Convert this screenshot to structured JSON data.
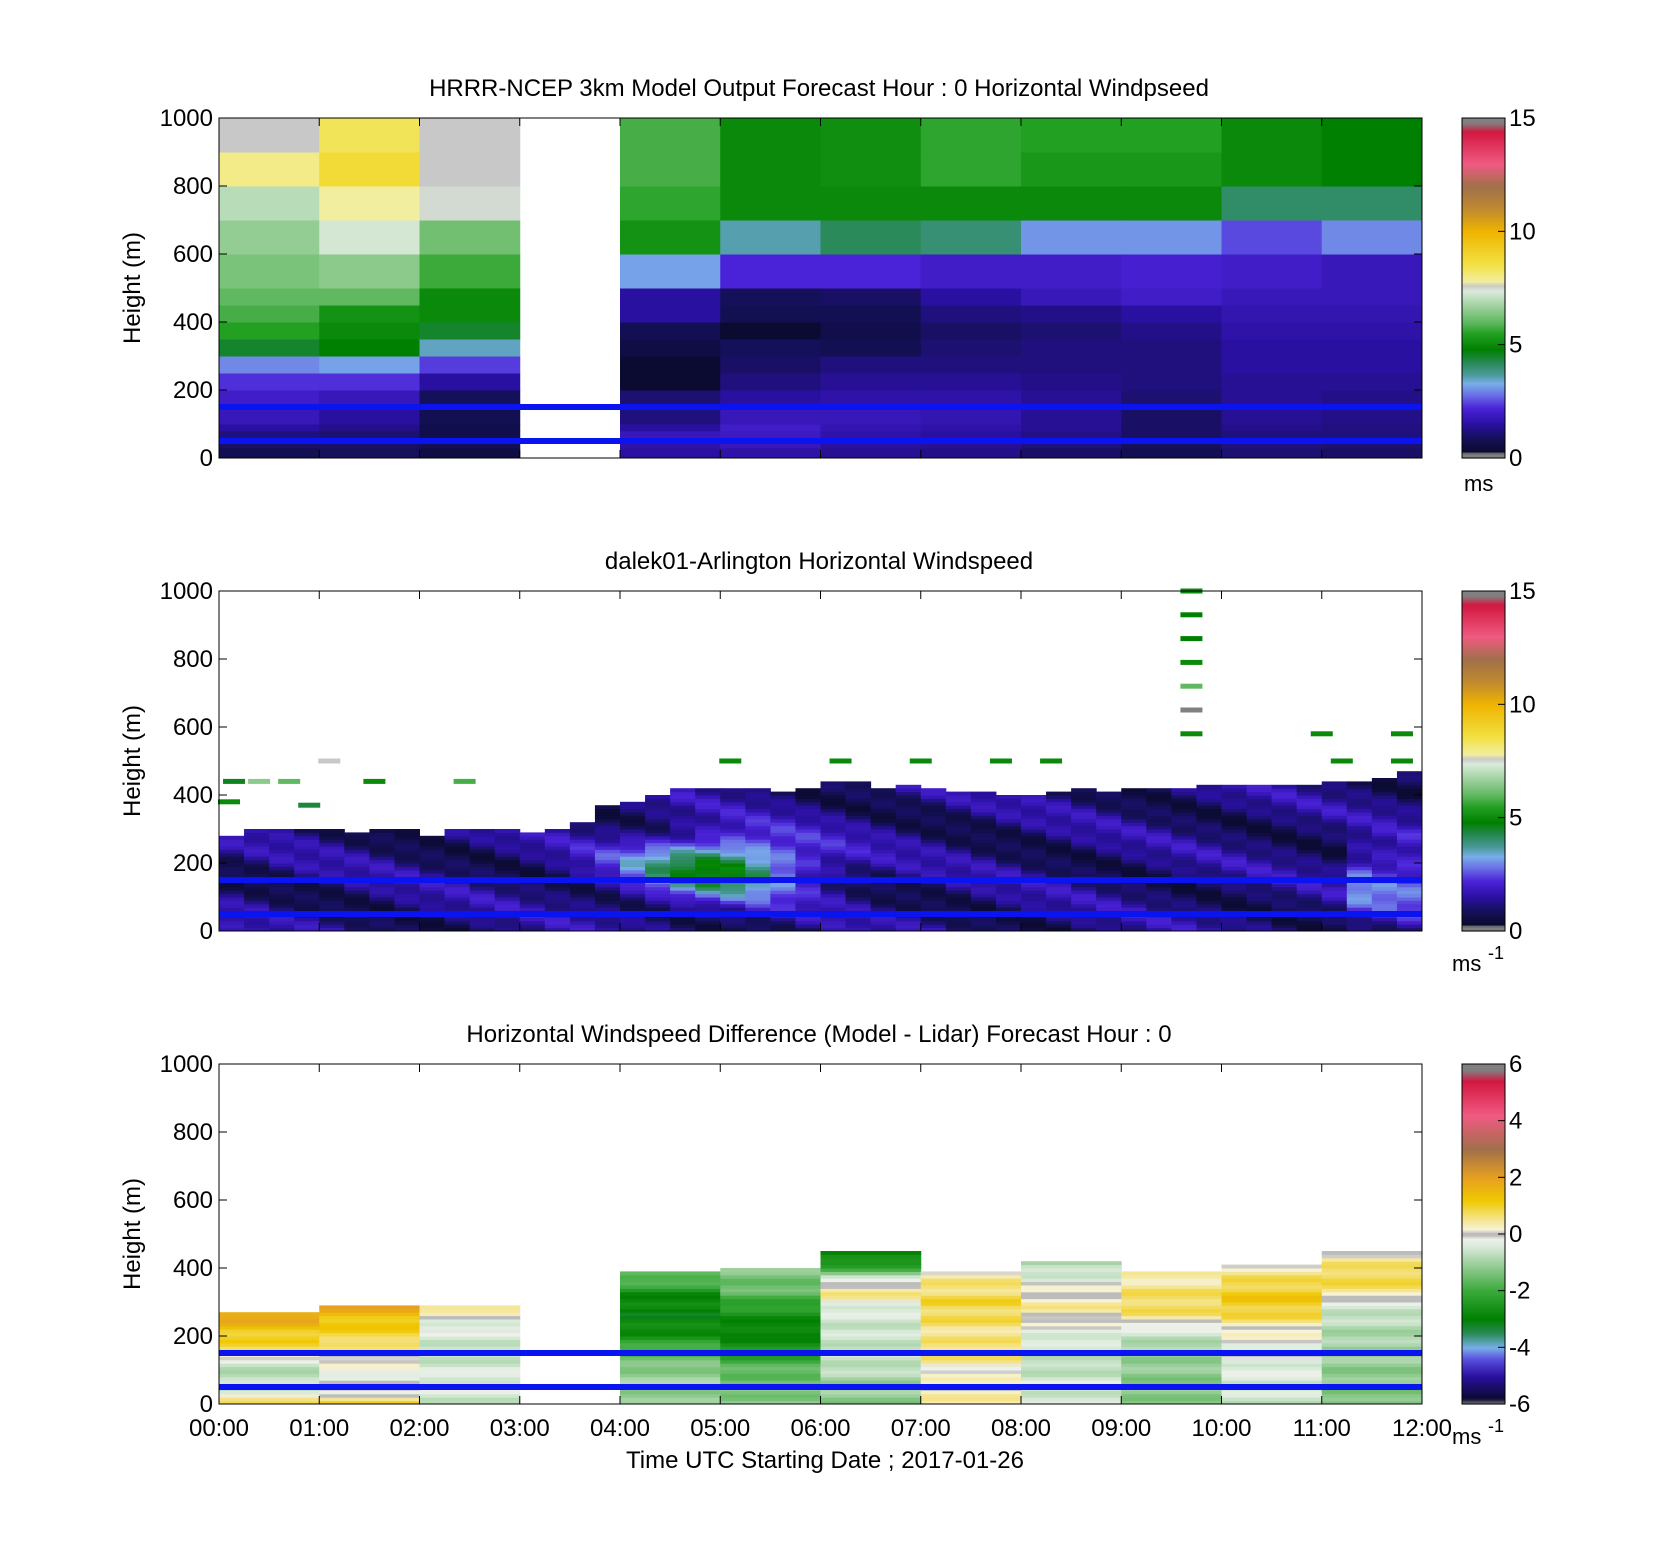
{
  "chart_data": [
    {
      "type": "heatmap",
      "title": "HRRR-NCEP 3km Model Output   Forecast Hour : 0 Horizontal Windpseed",
      "ylabel": "Height (m)",
      "xlabel": "",
      "ylim": [
        0,
        1000
      ],
      "xlim_hours": [
        0,
        12
      ],
      "yticks": [
        0,
        200,
        400,
        600,
        800,
        1000
      ],
      "xtick_labels_shown": false,
      "colorbar": {
        "min": 0,
        "max": 15,
        "ticks": [
          0,
          5,
          10,
          15
        ],
        "unit": "ms",
        "unit_sup": "",
        "colormap": "speed"
      },
      "reference_lines_m": [
        50,
        150
      ],
      "levels_m": [
        0,
        30,
        50,
        80,
        100,
        150,
        200,
        250,
        300,
        350,
        400,
        450,
        500,
        600,
        700,
        800,
        900,
        1000
      ],
      "columns": [
        {
          "t0": 0,
          "t1": 1,
          "values": [
            0.8,
            1.0,
            1.2,
            1.5,
            1.8,
            2.0,
            2.3,
            3.0,
            4.5,
            5.5,
            5.8,
            6.0,
            6.3,
            6.6,
            7.0,
            8.0,
            7.6
          ]
        },
        {
          "t0": 1,
          "t1": 2,
          "values": [
            0.9,
            1.0,
            1.1,
            1.3,
            1.5,
            1.8,
            2.3,
            3.2,
            4.8,
            5.0,
            5.2,
            6.0,
            6.5,
            7.3,
            7.8,
            8.8,
            8.4
          ]
        },
        {
          "t0": 2,
          "t1": 3,
          "values": [
            0.6,
            0.8,
            0.7,
            0.7,
            0.8,
            0.9,
            1.5,
            2.4,
            3.5,
            4.5,
            5.0,
            5.0,
            5.7,
            6.2,
            7.5,
            7.6,
            7.6
          ]
        },
        {
          "t0": 3,
          "t1": 4,
          "values": [
            null,
            null,
            null,
            null,
            null,
            null,
            null,
            null,
            null,
            null,
            null,
            null,
            null,
            null,
            null,
            null,
            null
          ]
        },
        {
          "t0": 4,
          "t1": 5,
          "values": [
            1.5,
            1.6,
            1.8,
            1.5,
            1.2,
            1.1,
            0.3,
            0.3,
            0.6,
            0.8,
            1.5,
            1.5,
            3.2,
            5.2,
            5.6,
            5.8,
            5.8
          ]
        },
        {
          "t0": 5,
          "t1": 6,
          "values": [
            1.6,
            1.8,
            1.9,
            2.0,
            1.8,
            1.5,
            1.2,
            1.0,
            0.9,
            0.3,
            0.8,
            0.9,
            2.2,
            3.6,
            5.0,
            5.0,
            5.0
          ]
        },
        {
          "t0": 6,
          "t1": 7,
          "values": [
            1.4,
            1.5,
            1.6,
            1.7,
            1.8,
            1.6,
            1.4,
            1.2,
            0.8,
            0.7,
            0.8,
            1.0,
            2.2,
            4.2,
            5.0,
            5.1,
            5.1
          ]
        },
        {
          "t0": 7,
          "t1": 8,
          "values": [
            1.3,
            1.4,
            1.5,
            1.6,
            1.7,
            1.6,
            1.4,
            1.2,
            1.1,
            1.0,
            1.2,
            1.5,
            2.0,
            4.0,
            5.0,
            5.6,
            5.6
          ]
        },
        {
          "t0": 8,
          "t1": 9,
          "values": [
            1.0,
            1.2,
            1.3,
            1.4,
            1.4,
            1.4,
            1.3,
            1.2,
            1.2,
            1.1,
            1.3,
            1.8,
            2.0,
            3.1,
            5.0,
            5.3,
            5.5
          ]
        },
        {
          "t0": 9,
          "t1": 10,
          "values": [
            0.8,
            0.9,
            1.0,
            1.0,
            1.0,
            1.1,
            1.2,
            1.2,
            1.2,
            1.3,
            1.5,
            2.0,
            2.1,
            3.1,
            5.0,
            5.3,
            5.5
          ]
        },
        {
          "t0": 10,
          "t1": 11,
          "values": [
            1.1,
            1.2,
            1.2,
            1.3,
            1.4,
            1.4,
            1.4,
            1.5,
            1.5,
            1.6,
            1.7,
            1.8,
            2.0,
            2.5,
            4.1,
            5.0,
            5.0
          ]
        },
        {
          "t0": 11,
          "t1": 12,
          "values": [
            1.0,
            1.1,
            1.2,
            1.2,
            1.3,
            1.3,
            1.4,
            1.5,
            1.5,
            1.6,
            1.7,
            1.8,
            1.8,
            3.0,
            4.1,
            4.8,
            4.8
          ]
        }
      ]
    },
    {
      "type": "heatmap",
      "title": "dalek01-Arlington  Horizontal Windspeed",
      "ylabel": "Height (m)",
      "xlabel": "",
      "ylim": [
        0,
        1000
      ],
      "xlim_hours": [
        0,
        12
      ],
      "yticks": [
        0,
        200,
        400,
        600,
        800,
        1000
      ],
      "xtick_labels_shown": false,
      "colorbar": {
        "min": 0,
        "max": 15,
        "ticks": [
          0,
          5,
          10,
          15
        ],
        "unit": "ms",
        "unit_sup": "-1",
        "colormap": "speed"
      },
      "reference_lines_m": [
        50,
        150
      ],
      "time_step_h": 0.25,
      "top_of_valid_data_m": [
        280,
        300,
        300,
        300,
        300,
        290,
        300,
        300,
        280,
        300,
        300,
        300,
        290,
        300,
        320,
        370,
        380,
        400,
        420,
        420,
        420,
        420,
        410,
        420,
        440,
        440,
        420,
        430,
        420,
        410,
        410,
        400,
        400,
        410,
        420,
        410,
        420,
        420,
        420,
        430,
        430,
        430,
        430,
        430,
        440,
        440,
        450,
        470
      ],
      "speed_profile_notes": "Low-level values mostly 0.5–2.5 m/s; jet of 4–5.5 m/s between 100–300 m from about 04:00 to 06:00; scattered returns up to ~1000 m near 09:45.",
      "sparse_returns": [
        {
          "t": 0.15,
          "z": 440,
          "v": 4.6
        },
        {
          "t": 0.4,
          "z": 440,
          "v": 6.5
        },
        {
          "t": 0.7,
          "z": 440,
          "v": 6.0
        },
        {
          "t": 0.1,
          "z": 380,
          "v": 5.0
        },
        {
          "t": 0.9,
          "z": 370,
          "v": 4.4
        },
        {
          "t": 1.55,
          "z": 440,
          "v": 5.0
        },
        {
          "t": 2.45,
          "z": 440,
          "v": 5.8
        },
        {
          "t": 1.1,
          "z": 500,
          "v": 7.6
        },
        {
          "t": 5.1,
          "z": 500,
          "v": 5.0
        },
        {
          "t": 6.2,
          "z": 500,
          "v": 5.0
        },
        {
          "t": 7.0,
          "z": 500,
          "v": 5.0
        },
        {
          "t": 7.8,
          "z": 500,
          "v": 5.0
        },
        {
          "t": 8.3,
          "z": 500,
          "v": 5.0
        },
        {
          "t": 9.7,
          "z": 1000,
          "v": 5.0
        },
        {
          "t": 9.7,
          "z": 930,
          "v": 4.8
        },
        {
          "t": 9.7,
          "z": 860,
          "v": 4.8
        },
        {
          "t": 9.7,
          "z": 790,
          "v": 5.0
        },
        {
          "t": 9.7,
          "z": 720,
          "v": 6.0
        },
        {
          "t": 9.7,
          "z": 650,
          "v": 0.0
        },
        {
          "t": 9.7,
          "z": 580,
          "v": 5.0
        },
        {
          "t": 11.0,
          "z": 580,
          "v": 5.0
        },
        {
          "t": 11.8,
          "z": 580,
          "v": 5.0
        },
        {
          "t": 11.2,
          "z": 500,
          "v": 5.0
        },
        {
          "t": 11.8,
          "z": 500,
          "v": 5.0
        }
      ]
    },
    {
      "type": "heatmap",
      "title": "Horizontal Windspeed Difference (Model - Lidar) Forecast Hour : 0",
      "ylabel": "Height (m)",
      "xlabel": "Time UTC  Starting Date ; 2017-01-26",
      "ylim": [
        0,
        1000
      ],
      "xlim_hours": [
        0,
        12
      ],
      "yticks": [
        0,
        200,
        400,
        600,
        800,
        1000
      ],
      "xtick_labels": [
        "00:00",
        "01:00",
        "02:00",
        "03:00",
        "04:00",
        "05:00",
        "06:00",
        "07:00",
        "08:00",
        "09:00",
        "10:00",
        "11:00",
        "12:00"
      ],
      "colorbar": {
        "min": -6,
        "max": 6,
        "ticks": [
          -6,
          -4,
          -2,
          0,
          2,
          4,
          6
        ],
        "unit": "ms",
        "unit_sup": "-1",
        "colormap": "diff"
      },
      "reference_lines_m": [
        50,
        150
      ],
      "columns": [
        {
          "t0": 0,
          "t1": 1,
          "top": 270,
          "bottom_value": 0.8,
          "profile": [
            [
              0,
              0.8
            ],
            [
              40,
              -0.4
            ],
            [
              80,
              -0.8
            ],
            [
              120,
              -0.6
            ],
            [
              160,
              0.8
            ],
            [
              200,
              1.0
            ],
            [
              240,
              1.6
            ],
            [
              270,
              2.0
            ]
          ]
        },
        {
          "t0": 1,
          "t1": 2,
          "top": 290,
          "bottom_value": 1.0,
          "profile": [
            [
              0,
              1.0
            ],
            [
              40,
              -0.2
            ],
            [
              80,
              -0.1
            ],
            [
              120,
              0.0
            ],
            [
              160,
              0.3
            ],
            [
              200,
              1.0
            ],
            [
              240,
              1.1
            ],
            [
              270,
              1.6
            ],
            [
              290,
              1.8
            ]
          ]
        },
        {
          "t0": 2,
          "t1": 3,
          "top": 290,
          "bottom_value": -0.6,
          "profile": [
            [
              0,
              -0.6
            ],
            [
              60,
              -0.3
            ],
            [
              100,
              -0.4
            ],
            [
              150,
              -0.7
            ],
            [
              200,
              -0.4
            ],
            [
              250,
              -0.2
            ],
            [
              280,
              0.4
            ],
            [
              290,
              0.8
            ]
          ]
        },
        {
          "t0": 3,
          "t1": 4,
          "top": 0,
          "bottom_value": null,
          "profile": []
        },
        {
          "t0": 4,
          "t1": 5,
          "top": 390,
          "bottom_value": -1.2,
          "profile": [
            [
              0,
              -1.2
            ],
            [
              80,
              -1.0
            ],
            [
              120,
              -1.4
            ],
            [
              160,
              -1.8
            ],
            [
              200,
              -2.6
            ],
            [
              260,
              -3.0
            ],
            [
              320,
              -2.8
            ],
            [
              360,
              -1.8
            ],
            [
              390,
              -1.4
            ]
          ]
        },
        {
          "t0": 5,
          "t1": 6,
          "top": 400,
          "bottom_value": -1.2,
          "profile": [
            [
              0,
              -1.2
            ],
            [
              60,
              -1.4
            ],
            [
              120,
              -1.8
            ],
            [
              160,
              -2.6
            ],
            [
              220,
              -3.0
            ],
            [
              280,
              -2.4
            ],
            [
              330,
              -1.6
            ],
            [
              370,
              -1.4
            ],
            [
              400,
              -1.2
            ]
          ]
        },
        {
          "t0": 6,
          "t1": 7,
          "top": 450,
          "bottom_value": -1.2,
          "profile": [
            [
              0,
              -1.2
            ],
            [
              60,
              -1.0
            ],
            [
              120,
              -0.6
            ],
            [
              200,
              -0.6
            ],
            [
              280,
              -0.4
            ],
            [
              330,
              0.6
            ],
            [
              360,
              0.0
            ],
            [
              390,
              -1.6
            ],
            [
              420,
              -2.6
            ],
            [
              450,
              -3.0
            ]
          ]
        },
        {
          "t0": 7,
          "t1": 8,
          "top": 390,
          "bottom_value": 0.4,
          "profile": [
            [
              0,
              0.4
            ],
            [
              60,
              0.2
            ],
            [
              100,
              0.0
            ],
            [
              150,
              0.8
            ],
            [
              200,
              0.5
            ],
            [
              240,
              0.7
            ],
            [
              300,
              0.9
            ],
            [
              350,
              0.6
            ],
            [
              390,
              0.3
            ]
          ]
        },
        {
          "t0": 8,
          "t1": 9,
          "top": 420,
          "bottom_value": -0.6,
          "profile": [
            [
              0,
              -0.6
            ],
            [
              60,
              -0.4
            ],
            [
              120,
              -0.8
            ],
            [
              180,
              -0.5
            ],
            [
              240,
              0.0
            ],
            [
              280,
              0.4
            ],
            [
              320,
              0.2
            ],
            [
              360,
              -0.2
            ],
            [
              420,
              -1.0
            ]
          ]
        },
        {
          "t0": 9,
          "t1": 10,
          "top": 390,
          "bottom_value": -1.2,
          "profile": [
            [
              0,
              -1.2
            ],
            [
              80,
              -1.2
            ],
            [
              160,
              -1.0
            ],
            [
              220,
              -0.4
            ],
            [
              260,
              0.6
            ],
            [
              300,
              0.8
            ],
            [
              340,
              0.6
            ],
            [
              390,
              0.2
            ]
          ]
        },
        {
          "t0": 10,
          "t1": 11,
          "top": 410,
          "bottom_value": -0.6,
          "profile": [
            [
              0,
              -0.6
            ],
            [
              80,
              -0.4
            ],
            [
              160,
              -0.2
            ],
            [
              220,
              0.2
            ],
            [
              260,
              0.8
            ],
            [
              300,
              1.2
            ],
            [
              340,
              1.0
            ],
            [
              380,
              0.6
            ],
            [
              410,
              0.2
            ]
          ]
        },
        {
          "t0": 11,
          "t1": 12,
          "top": 450,
          "bottom_value": -1.4,
          "profile": [
            [
              0,
              -1.4
            ],
            [
              80,
              -1.2
            ],
            [
              160,
              -1.0
            ],
            [
              230,
              -0.8
            ],
            [
              300,
              -0.4
            ],
            [
              330,
              0.6
            ],
            [
              380,
              0.9
            ],
            [
              420,
              0.5
            ],
            [
              450,
              0.1
            ]
          ]
        }
      ]
    }
  ]
}
